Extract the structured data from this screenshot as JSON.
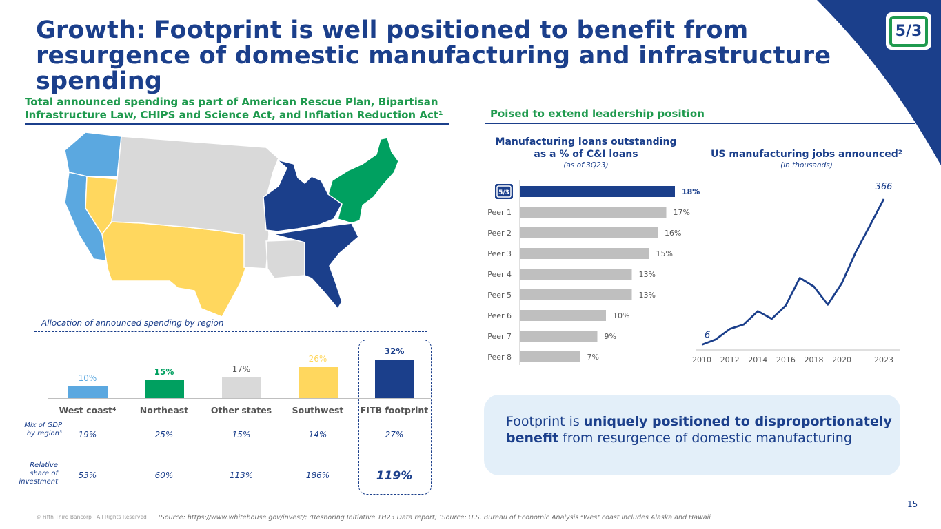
{
  "title": "Growth: Footprint is well positioned to benefit from resurgence of domestic manufacturing and infrastructure spending",
  "logo": {
    "text": "5/3"
  },
  "left_section": {
    "heading": "Total announced spending as part of American Rescue Plan, Bipartisan Infrastructure Law, CHIPS and Science Act, and Inflation Reduction Act¹",
    "alloc_label": "Allocation of announced spending by region",
    "row1_label": "Mix of GDP by region³",
    "row2_label": "Relative share of investment"
  },
  "right_section": {
    "heading": "Poised to extend leadership position"
  },
  "colors": {
    "navy": "#1b3f8b",
    "green": "#00a060",
    "light_blue": "#5ba8e0",
    "yellow": "#ffd75e",
    "gray": "#d9d9d9",
    "bar_gray": "#bfbfbf"
  },
  "chart_data": [
    {
      "type": "bar",
      "title": "Allocation of announced spending by region",
      "categories": [
        "West coast⁴",
        "Northeast",
        "Other states",
        "Southwest",
        "FITB footprint"
      ],
      "values": [
        10,
        15,
        17,
        26,
        32
      ],
      "value_labels": [
        "10%",
        "15%",
        "17%",
        "26%",
        "32%"
      ],
      "colors": [
        "#5ba8e0",
        "#00a060",
        "#d9d9d9",
        "#ffd75e",
        "#1b3f8b"
      ],
      "label_colors": [
        "#5ba8e0",
        "#00a060",
        "#555555",
        "#ffd75e",
        "#1b3f8b"
      ],
      "mix_of_gdp": [
        "19%",
        "25%",
        "15%",
        "14%",
        "27%"
      ],
      "relative_share": [
        "53%",
        "60%",
        "113%",
        "186%",
        "119%"
      ],
      "ylim": [
        0,
        32
      ]
    },
    {
      "type": "bar",
      "orientation": "horizontal",
      "title": "Manufacturing loans outstanding as a % of C&I loans",
      "subtitle": "(as of 3Q23)",
      "categories": [
        "Fifth Third",
        "Peer 1",
        "Peer 2",
        "Peer 3",
        "Peer 4",
        "Peer 5",
        "Peer 6",
        "Peer 7",
        "Peer 8"
      ],
      "values": [
        18,
        17,
        16,
        15,
        13,
        13,
        10,
        9,
        7
      ],
      "value_labels": [
        "18%",
        "17%",
        "16%",
        "15%",
        "13%",
        "13%",
        "10%",
        "9%",
        "7%"
      ],
      "xlim": [
        0,
        18
      ]
    },
    {
      "type": "line",
      "title": "US manufacturing jobs announced²",
      "subtitle": "(in thousands)",
      "x": [
        2010,
        2011,
        2012,
        2013,
        2014,
        2015,
        2016,
        2017,
        2018,
        2019,
        2020,
        2021,
        2022,
        2023
      ],
      "y": [
        6,
        19,
        45,
        56,
        89,
        70,
        103,
        171,
        150,
        105,
        158,
        235,
        300,
        366
      ],
      "tick_labels": [
        "2010",
        "2012",
        "2014",
        "2016",
        "2018",
        "2020",
        "2023"
      ],
      "first_label": "6",
      "last_label": "366",
      "ylim": [
        0,
        366
      ]
    }
  ],
  "callout": {
    "text_pre": "Footprint is ",
    "text_bold": "uniquely positioned to disproportionately benefit",
    "text_post": " from resurgence of domestic manufacturing"
  },
  "page_number": "15",
  "copyright": "© Fifth Third Bancorp | All Rights Reserved",
  "footnote": {
    "pre": "¹Source: ",
    "link": "https://www.whitehouse.gov/invest/",
    "post": "; ²Reshoring Initiative 1H23 Data report; ³Source: U.S. Bureau of Economic Analysis ⁴West coast includes Alaska and Hawaii"
  }
}
